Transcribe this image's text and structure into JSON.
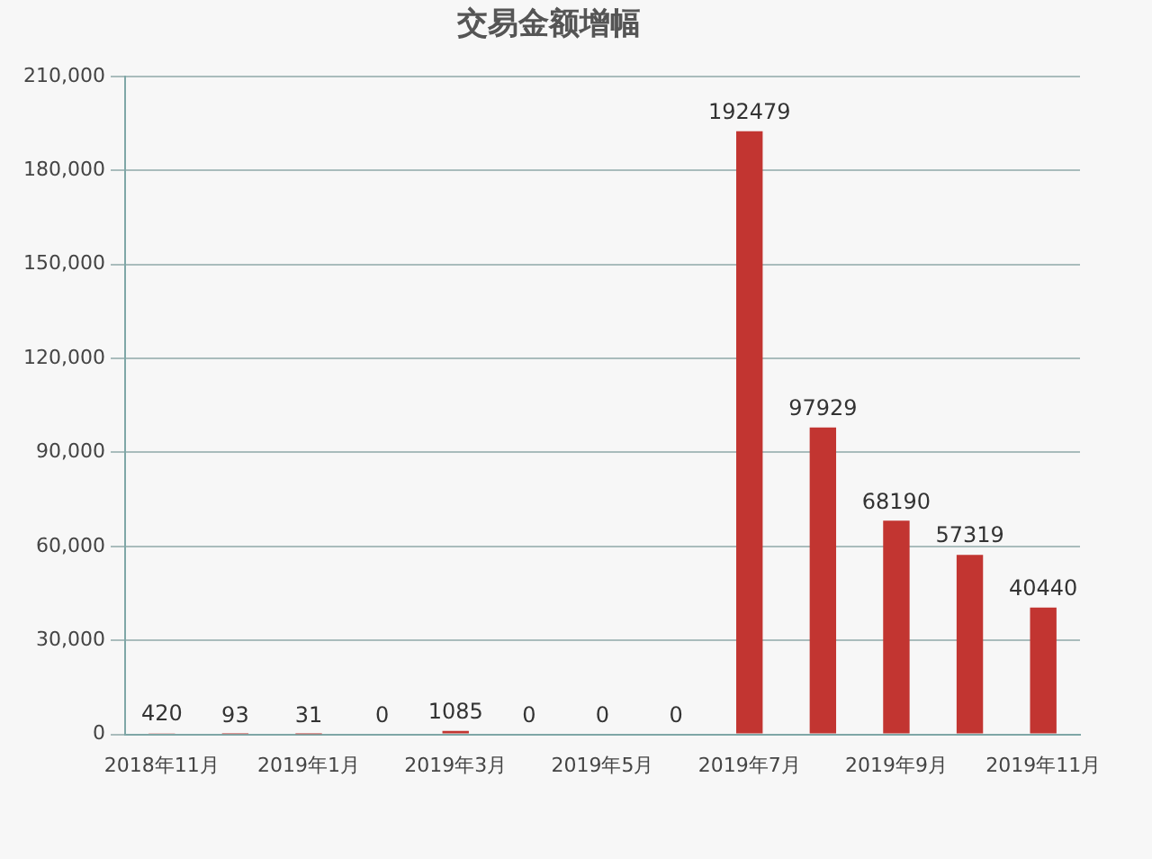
{
  "chart_data": {
    "type": "bar",
    "title": "交易金额增幅",
    "categories": [
      "2018年11月",
      null,
      "2019年1月",
      null,
      "2019年3月",
      null,
      "2019年5月",
      null,
      "2019年7月",
      null,
      "2019年9月",
      null,
      "2019年11月"
    ],
    "values": [
      420,
      93,
      31,
      0,
      1085,
      0,
      0,
      0,
      192479,
      97929,
      68190,
      57319,
      40440
    ],
    "color": "#c23531",
    "ylim": [
      0,
      210000
    ],
    "yticks": [
      0,
      {
        "value": 30000,
        "label": "30,000"
      },
      {
        "value": 60000,
        "label": "60,000"
      },
      {
        "value": 90000,
        "label": "90,000"
      },
      {
        "value": 120000,
        "label": "120,000"
      },
      {
        "value": 150000,
        "label": "150,000"
      },
      {
        "value": 180000,
        "label": "180,000"
      },
      {
        "value": 210000,
        "label": "210,000"
      }
    ],
    "grid": "y",
    "data_labels": true
  }
}
